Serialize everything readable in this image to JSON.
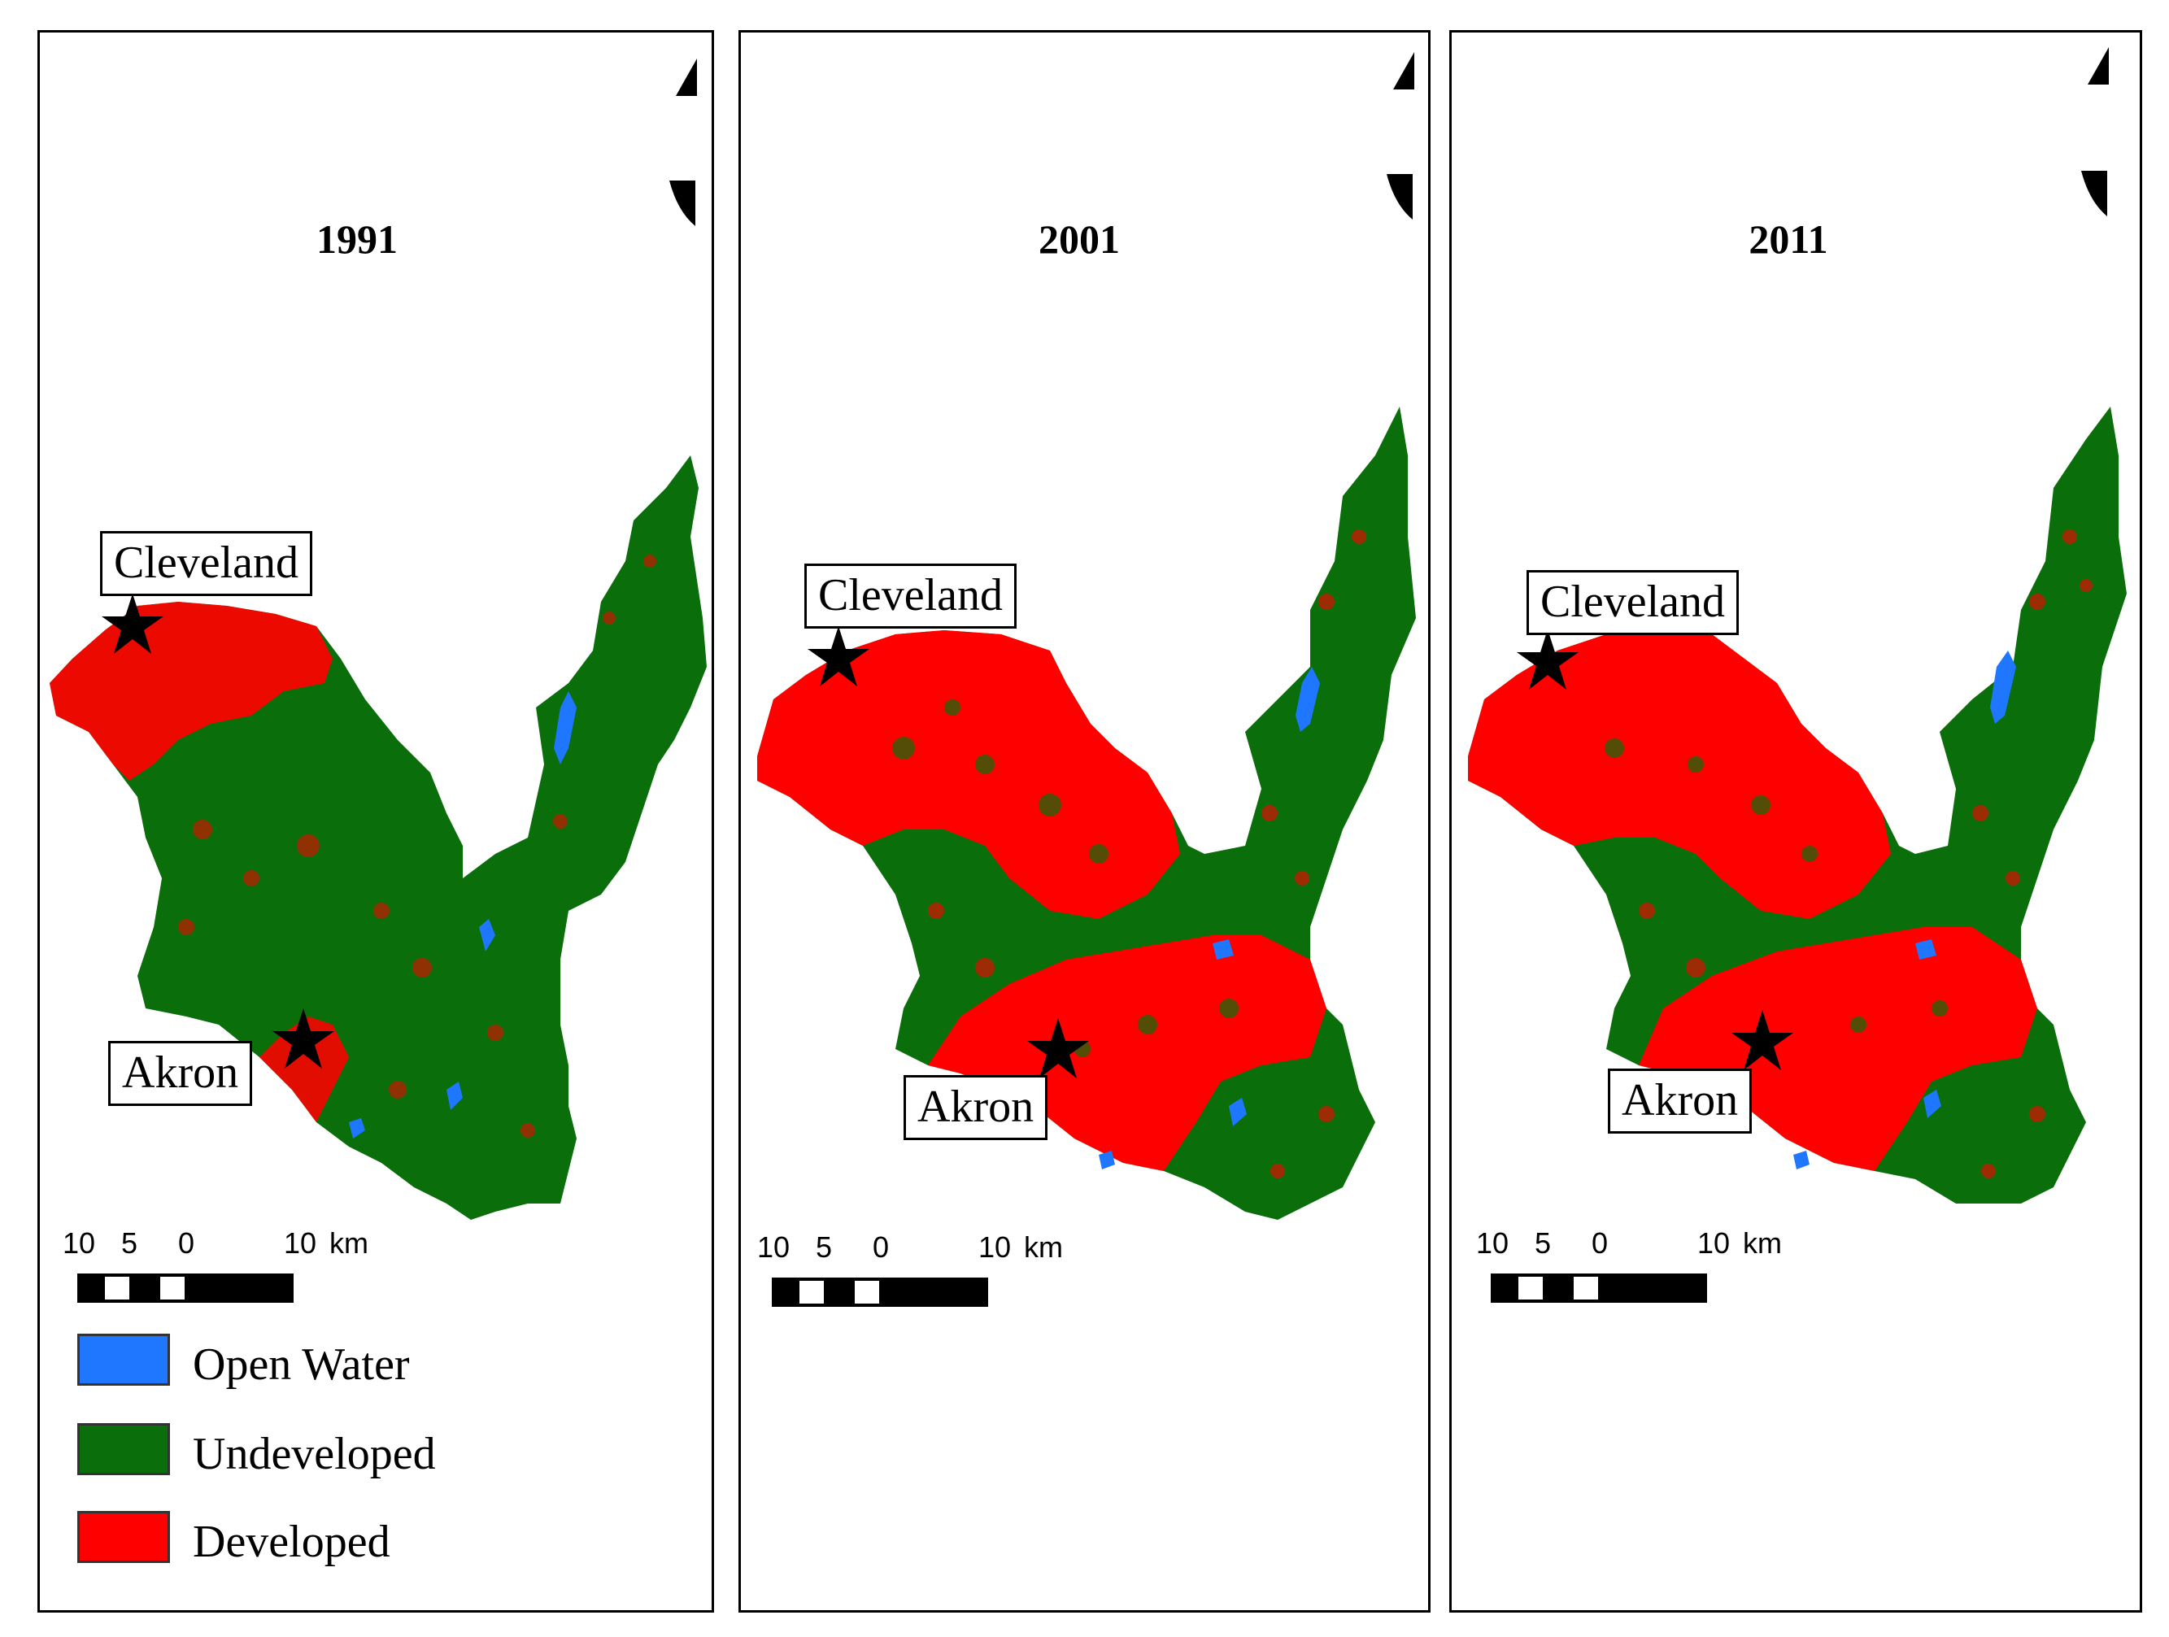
{
  "colors": {
    "open_water": "#1f77ff",
    "undeveloped": "#0a6e0a",
    "developed": "#ff0000"
  },
  "panels": [
    {
      "year": "1991",
      "developed_share": 0.28,
      "city_labels": {
        "north": "Cleveland",
        "south": "Akron"
      }
    },
    {
      "year": "2001",
      "developed_share": 0.55,
      "city_labels": {
        "north": "Cleveland",
        "south": "Akron"
      }
    },
    {
      "year": "2011",
      "developed_share": 0.6,
      "city_labels": {
        "north": "Cleveland",
        "south": "Akron"
      }
    }
  ],
  "scale_bar": {
    "ticks": [
      "10",
      "5",
      "0",
      "10"
    ],
    "unit": "km"
  },
  "legend": {
    "items": [
      {
        "label": "Open Water",
        "color": "#1f77ff"
      },
      {
        "label": "Undeveloped",
        "color": "#0a6e0a"
      },
      {
        "label": "Developed",
        "color": "#ff0000"
      }
    ]
  }
}
